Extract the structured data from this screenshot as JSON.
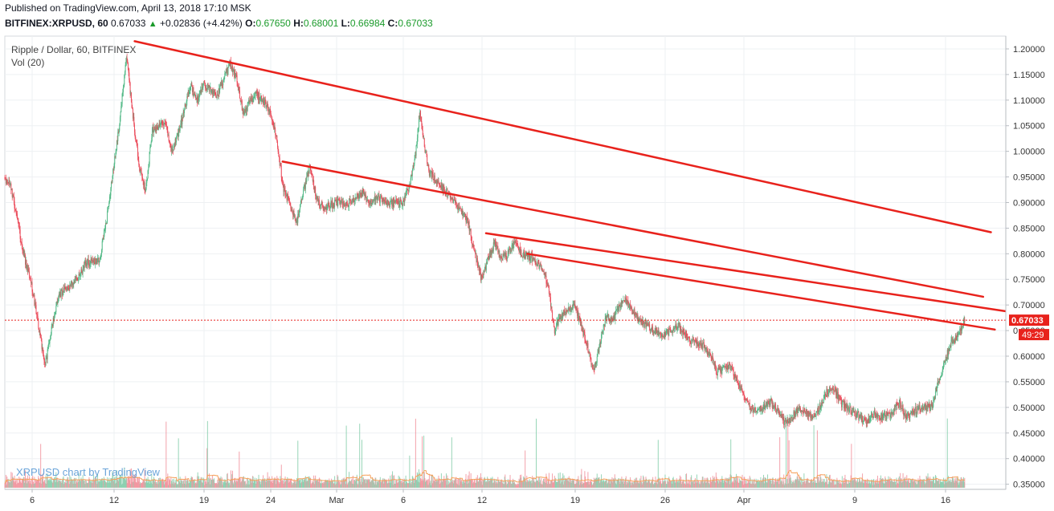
{
  "header": {
    "published_line": "Published on TradingView.com, April 13, 2018 17:10 MSK",
    "symbol": "BITFINEX:XRPUSD, 60",
    "last": "0.67033",
    "change": "+0.02836 (+4.42%)",
    "open_label": "O:",
    "open": "0.67650",
    "high_label": "H:",
    "high": "0.68001",
    "low_label": "L:",
    "low": "0.66984",
    "close_label": "C:",
    "close": "0.67033"
  },
  "chart_data": {
    "type": "candlestick",
    "title": "Ripple / Dollar, 60, BITFINEX",
    "volume_label": "Vol (20)",
    "watermark": "XRPUSD chart by TradingView",
    "ylim": [
      0.34,
      1.225
    ],
    "y_ticks": [
      "1.20000",
      "1.15000",
      "1.10000",
      "1.05000",
      "1.00000",
      "0.95000",
      "0.90000",
      "0.85000",
      "0.80000",
      "0.75000",
      "0.70000",
      "0.65000",
      "0.60000",
      "0.55000",
      "0.50000",
      "0.45000",
      "0.40000",
      "0.35000"
    ],
    "x_ticks": [
      "6",
      "12",
      "19",
      "24",
      "Mar",
      "6",
      "12",
      "19",
      "26",
      "Apr",
      "9",
      "16"
    ],
    "last_price_label": "0.67033",
    "countdown_label": "49:29",
    "colors": {
      "up": "#53b987",
      "down": "#eb4d5c",
      "trendline": "#e8221c",
      "price_line": "#e8221c",
      "volume_up": "#7ecba6",
      "volume_down": "#f08b96",
      "volume_ma": "#f5a05a"
    },
    "price_path": [
      [
        0,
        0.95
      ],
      [
        0.5,
        0.93
      ],
      [
        1,
        0.86
      ],
      [
        1.5,
        0.79
      ],
      [
        2,
        0.74
      ],
      [
        2.5,
        0.66
      ],
      [
        3,
        0.58
      ],
      [
        3.5,
        0.66
      ],
      [
        4,
        0.72
      ],
      [
        5,
        0.74
      ],
      [
        6,
        0.78
      ],
      [
        7,
        0.79
      ],
      [
        7.5,
        0.87
      ],
      [
        8,
        0.97
      ],
      [
        8.5,
        1.06
      ],
      [
        9,
        1.19
      ],
      [
        9.5,
        1.07
      ],
      [
        10,
        0.97
      ],
      [
        10.5,
        0.92
      ],
      [
        11,
        1.04
      ],
      [
        12,
        1.06
      ],
      [
        12.5,
        1.0
      ],
      [
        13,
        1.03
      ],
      [
        14,
        1.13
      ],
      [
        14.5,
        1.1
      ],
      [
        15,
        1.13
      ],
      [
        16,
        1.11
      ],
      [
        16.5,
        1.14
      ],
      [
        17,
        1.17
      ],
      [
        17.5,
        1.14
      ],
      [
        18,
        1.07
      ],
      [
        18.5,
        1.1
      ],
      [
        19,
        1.11
      ],
      [
        19.5,
        1.1
      ],
      [
        20,
        1.08
      ],
      [
        20.5,
        1.02
      ],
      [
        21,
        0.93
      ],
      [
        22,
        0.86
      ],
      [
        22.5,
        0.92
      ],
      [
        23,
        0.97
      ],
      [
        23.5,
        0.91
      ],
      [
        24,
        0.89
      ],
      [
        25,
        0.9
      ],
      [
        26,
        0.9
      ],
      [
        27,
        0.92
      ],
      [
        27.5,
        0.9
      ],
      [
        28,
        0.91
      ],
      [
        29,
        0.9
      ],
      [
        30,
        0.9
      ],
      [
        30.5,
        0.93
      ],
      [
        31,
        1.0
      ],
      [
        31.3,
        1.08
      ],
      [
        31.6,
        1.02
      ],
      [
        32,
        0.96
      ],
      [
        33,
        0.93
      ],
      [
        34,
        0.9
      ],
      [
        35,
        0.86
      ],
      [
        35.5,
        0.8
      ],
      [
        36,
        0.75
      ],
      [
        36.5,
        0.79
      ],
      [
        37,
        0.82
      ],
      [
        37.5,
        0.79
      ],
      [
        38,
        0.8
      ],
      [
        38.5,
        0.82
      ],
      [
        39,
        0.8
      ],
      [
        40,
        0.79
      ],
      [
        40.5,
        0.77
      ],
      [
        41,
        0.74
      ],
      [
        41.5,
        0.65
      ],
      [
        42,
        0.68
      ],
      [
        43,
        0.7
      ],
      [
        43.5,
        0.66
      ],
      [
        44,
        0.62
      ],
      [
        44.5,
        0.57
      ],
      [
        45,
        0.63
      ],
      [
        45.5,
        0.68
      ],
      [
        46,
        0.67
      ],
      [
        46.5,
        0.7
      ],
      [
        47,
        0.71
      ],
      [
        47.5,
        0.69
      ],
      [
        48,
        0.67
      ],
      [
        49,
        0.65
      ],
      [
        50,
        0.64
      ],
      [
        51,
        0.66
      ],
      [
        52,
        0.63
      ],
      [
        53,
        0.62
      ],
      [
        53.5,
        0.6
      ],
      [
        54,
        0.57
      ],
      [
        55,
        0.58
      ],
      [
        55.5,
        0.55
      ],
      [
        56,
        0.53
      ],
      [
        56.5,
        0.5
      ],
      [
        57,
        0.49
      ],
      [
        58,
        0.51
      ],
      [
        58.5,
        0.49
      ],
      [
        59,
        0.47
      ],
      [
        59.5,
        0.48
      ],
      [
        60,
        0.5
      ],
      [
        61,
        0.48
      ],
      [
        61.5,
        0.5
      ],
      [
        62,
        0.53
      ],
      [
        62.5,
        0.54
      ],
      [
        63,
        0.51
      ],
      [
        63.5,
        0.5
      ],
      [
        64,
        0.49
      ],
      [
        64.5,
        0.48
      ],
      [
        65,
        0.47
      ],
      [
        65.5,
        0.49
      ],
      [
        66,
        0.48
      ],
      [
        67,
        0.49
      ],
      [
        67.5,
        0.51
      ],
      [
        68,
        0.48
      ],
      [
        68.5,
        0.49
      ],
      [
        69,
        0.5
      ],
      [
        70,
        0.5
      ],
      [
        70.5,
        0.55
      ],
      [
        71,
        0.59
      ],
      [
        71.5,
        0.63
      ],
      [
        72,
        0.64
      ],
      [
        72.5,
        0.67
      ]
    ],
    "trendlines": [
      {
        "from": [
          9.6,
          1.215
        ],
        "to": [
          74.5,
          0.842
        ]
      },
      {
        "from": [
          20.9,
          0.98
        ],
        "to": [
          73.9,
          0.716
        ]
      },
      {
        "from": [
          36.3,
          0.84
        ],
        "to": [
          75.6,
          0.688
        ]
      },
      {
        "from": [
          39.4,
          0.8
        ],
        "to": [
          74.8,
          0.652
        ]
      }
    ]
  }
}
